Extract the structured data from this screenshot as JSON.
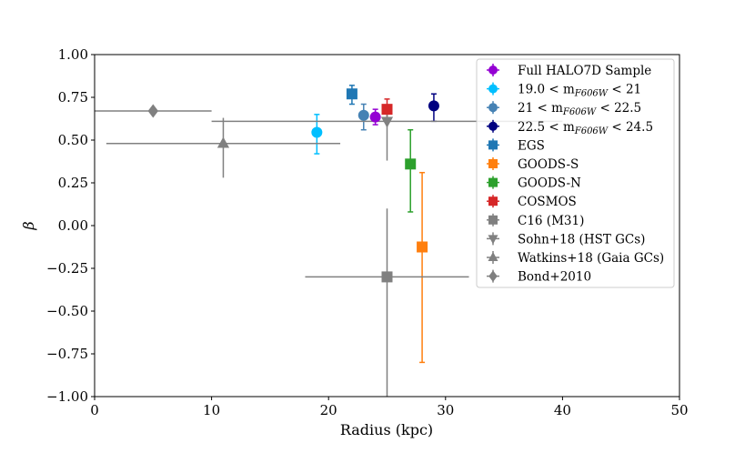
{
  "chart_data": {
    "type": "scatter",
    "title": "",
    "xlabel": "Radius (kpc)",
    "ylabel": "β",
    "xlim": [
      0,
      50
    ],
    "ylim": [
      -1.0,
      1.0
    ],
    "xticks": [
      0,
      10,
      20,
      30,
      40,
      50
    ],
    "xtick_labels": [
      "0",
      "10",
      "20",
      "30",
      "40",
      "50"
    ],
    "yticks": [
      1.0,
      0.75,
      0.5,
      0.25,
      0.0,
      -0.25,
      -0.5,
      -0.75,
      -1.0
    ],
    "ytick_labels": [
      "1.00",
      "0.75",
      "0.50",
      "0.25",
      "0.00",
      "−0.25",
      "−0.50",
      "−0.75",
      "−1.00"
    ],
    "grid": false,
    "legend_position": "top-right",
    "series": [
      {
        "name": "Full HALO7D Sample",
        "legend": [
          "Full HALO7D Sample"
        ],
        "color": "#9400d3",
        "marker": "circle",
        "points": [
          {
            "x": 24,
            "y": 0.635,
            "y_low": 0.59,
            "y_high": 0.68
          }
        ]
      },
      {
        "name": "19.0 < mF606W < 21",
        "legend": [
          "19.0 < m",
          "F606W",
          " < 21"
        ],
        "color": "#00bfff",
        "marker": "circle",
        "points": [
          {
            "x": 19,
            "y": 0.545,
            "y_low": 0.42,
            "y_high": 0.65
          }
        ]
      },
      {
        "name": "21 < mF606W < 22.5",
        "legend": [
          "21 < m",
          "F606W",
          " < 22.5"
        ],
        "color": "#4682b4",
        "marker": "circle",
        "points": [
          {
            "x": 23,
            "y": 0.645,
            "y_low": 0.56,
            "y_high": 0.71
          }
        ]
      },
      {
        "name": "22.5 < mF606W < 24.5",
        "legend": [
          "22.5 < m",
          "F606W",
          " < 24.5"
        ],
        "color": "#000080",
        "marker": "circle",
        "points": [
          {
            "x": 29,
            "y": 0.7,
            "y_low": 0.61,
            "y_high": 0.77
          }
        ]
      },
      {
        "name": "EGS",
        "legend": [
          "EGS"
        ],
        "color": "#1f77b4",
        "marker": "square",
        "points": [
          {
            "x": 22,
            "y": 0.77,
            "y_low": 0.71,
            "y_high": 0.82
          }
        ]
      },
      {
        "name": "GOODS-S",
        "legend": [
          "GOODS-S"
        ],
        "color": "#ff7f0e",
        "marker": "square",
        "points": [
          {
            "x": 28,
            "y": -0.125,
            "y_low": -0.8,
            "y_high": 0.31
          }
        ]
      },
      {
        "name": "GOODS-N",
        "legend": [
          "GOODS-N"
        ],
        "color": "#2ca02c",
        "marker": "square",
        "points": [
          {
            "x": 27,
            "y": 0.36,
            "y_low": 0.08,
            "y_high": 0.56
          }
        ]
      },
      {
        "name": "COSMOS",
        "legend": [
          "COSMOS"
        ],
        "color": "#d62728",
        "marker": "square",
        "points": [
          {
            "x": 25,
            "y": 0.68,
            "y_low": 0.62,
            "y_high": 0.74
          }
        ]
      },
      {
        "name": "C16 (M31)",
        "legend": [
          "C16 (M31)"
        ],
        "color": "#808080",
        "marker": "square",
        "points": [
          {
            "x": 25,
            "y": -0.3,
            "y_low": -1.05,
            "y_high": 0.1,
            "x_low": 18,
            "x_high": 32
          }
        ]
      },
      {
        "name": "Sohn+18 (HST GCs)",
        "legend": [
          "Sohn+18 (HST GCs)"
        ],
        "color": "#808080",
        "marker": "triangle-down",
        "points": [
          {
            "x": 25,
            "y": 0.61,
            "y_low": 0.38,
            "y_high": 0.7,
            "x_low": 10,
            "x_high": 40
          }
        ]
      },
      {
        "name": "Watkins+18 (Gaia GCs)",
        "legend": [
          "Watkins+18 (Gaia GCs)"
        ],
        "color": "#808080",
        "marker": "triangle-up",
        "points": [
          {
            "x": 11,
            "y": 0.48,
            "y_low": 0.28,
            "y_high": 0.63,
            "x_low": 1,
            "x_high": 21
          }
        ]
      },
      {
        "name": "Bond+2010",
        "legend": [
          "Bond+2010"
        ],
        "color": "#808080",
        "marker": "diamond",
        "points": [
          {
            "x": 5,
            "y": 0.67,
            "x_low": 0,
            "x_high": 10
          }
        ]
      }
    ]
  }
}
